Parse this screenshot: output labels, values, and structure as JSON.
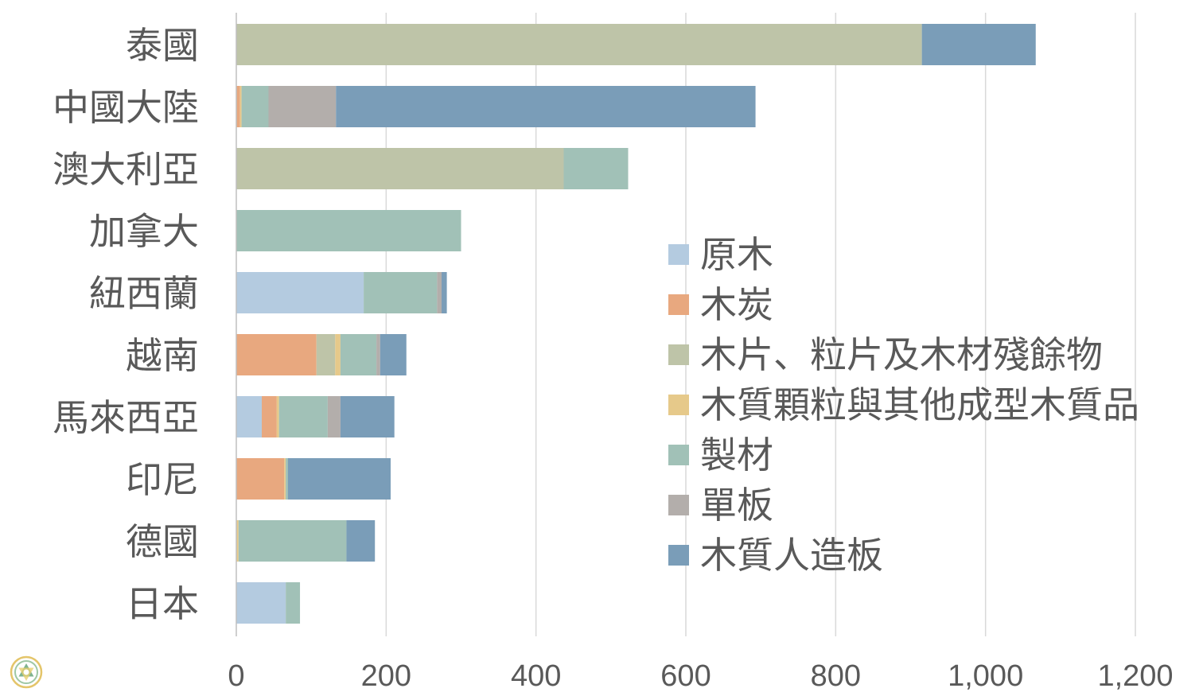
{
  "chart_data": {
    "type": "bar",
    "orientation": "horizontal",
    "stacked": true,
    "categories": [
      "泰國",
      "中國大陸",
      "澳大利亞",
      "加拿大",
      "紐西蘭",
      "越南",
      "馬來西亞",
      "印尼",
      "德國",
      "日本"
    ],
    "xlim": [
      0,
      1200
    ],
    "x_ticks": [
      0,
      200,
      400,
      600,
      800,
      1000,
      1200
    ],
    "x_tick_labels": [
      "0",
      "200",
      "400",
      "600",
      "800",
      "1,000",
      "1,200"
    ],
    "grid": "vertical",
    "legend_position": "center-right",
    "series": [
      {
        "name": "原木",
        "color": "#b4cbe0",
        "values": [
          0,
          0,
          0,
          0,
          170,
          0,
          34,
          0,
          0,
          66
        ]
      },
      {
        "name": "木炭",
        "color": "#e8a87f",
        "values": [
          0,
          5,
          0,
          0,
          0,
          107,
          20,
          64,
          0,
          0
        ]
      },
      {
        "name": "木片、粒片及木材殘餘物",
        "color": "#bec4a8",
        "values": [
          915,
          0,
          437,
          0,
          0,
          25,
          0,
          0,
          0,
          0
        ]
      },
      {
        "name": "木質顆粒與其他成型木質品",
        "color": "#e6c98a",
        "values": [
          0,
          2,
          0,
          0,
          0,
          7,
          3,
          2,
          3,
          0
        ]
      },
      {
        "name": "製材",
        "color": "#a1c1b7",
        "values": [
          0,
          36,
          86,
          300,
          98,
          48,
          65,
          3,
          144,
          19
        ]
      },
      {
        "name": "單板",
        "color": "#b3aeab",
        "values": [
          0,
          90,
          0,
          0,
          6,
          5,
          17,
          0,
          0,
          0
        ]
      },
      {
        "name": "木質人造板",
        "color": "#7a9db8",
        "values": [
          152,
          560,
          0,
          0,
          7,
          35,
          72,
          137,
          38,
          0
        ]
      }
    ]
  }
}
